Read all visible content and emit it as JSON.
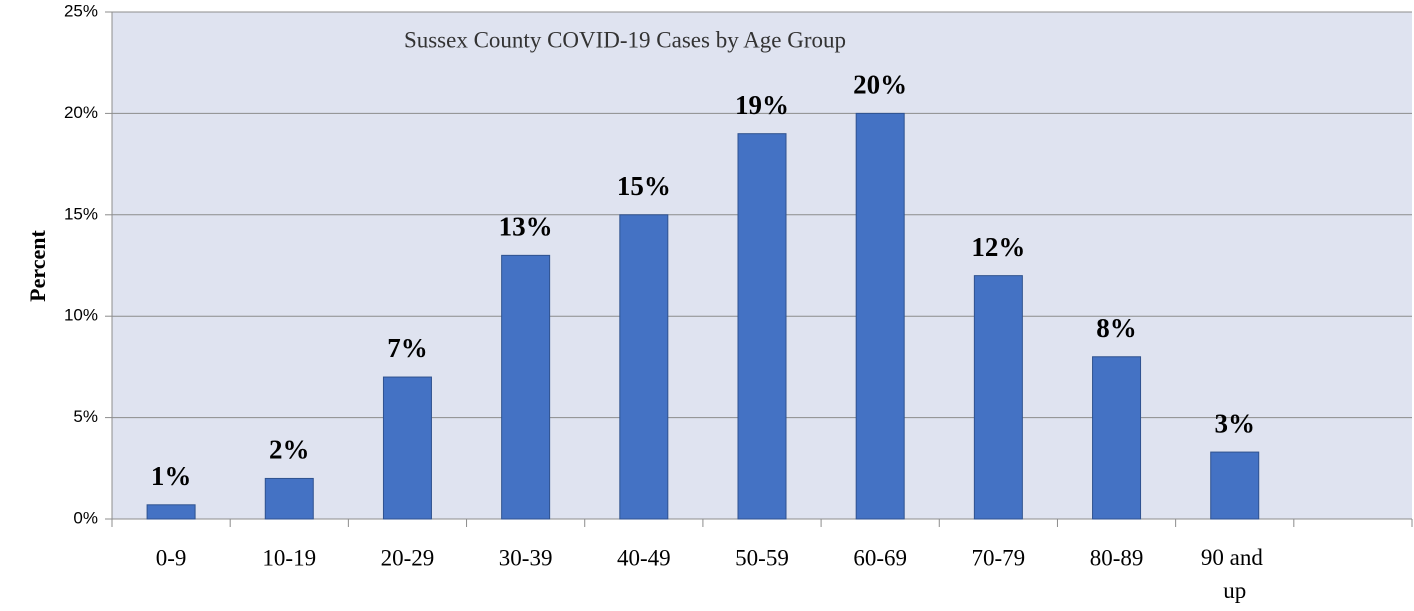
{
  "chart_data": {
    "type": "bar",
    "title": "Sussex County COVID-19 Cases by Age Group",
    "y_label": "Percent",
    "categories": [
      "0-9",
      "10-19",
      "20-29",
      "30-39",
      "40-49",
      "50-59",
      "60-69",
      "70-79",
      "80-89",
      "90 and up",
      null
    ],
    "values": [
      0.7,
      2,
      7,
      13,
      15,
      19,
      20,
      12,
      8,
      3.3,
      null
    ],
    "value_labels": [
      "1%",
      "2%",
      "7%",
      "13%",
      "15%",
      "19%",
      "20%",
      "12%",
      "8%",
      "3%",
      null
    ],
    "color": "#4472c4",
    "ylim": [
      0,
      25
    ],
    "yticks": [
      {
        "value": 0,
        "label": "0%"
      },
      {
        "value": 5,
        "label": "5%"
      },
      {
        "value": 10,
        "label": "10%"
      },
      {
        "value": 15,
        "label": "15%"
      },
      {
        "value": 20,
        "label": "20%"
      },
      {
        "value": 25,
        "label": "25%"
      }
    ],
    "grid": true
  }
}
